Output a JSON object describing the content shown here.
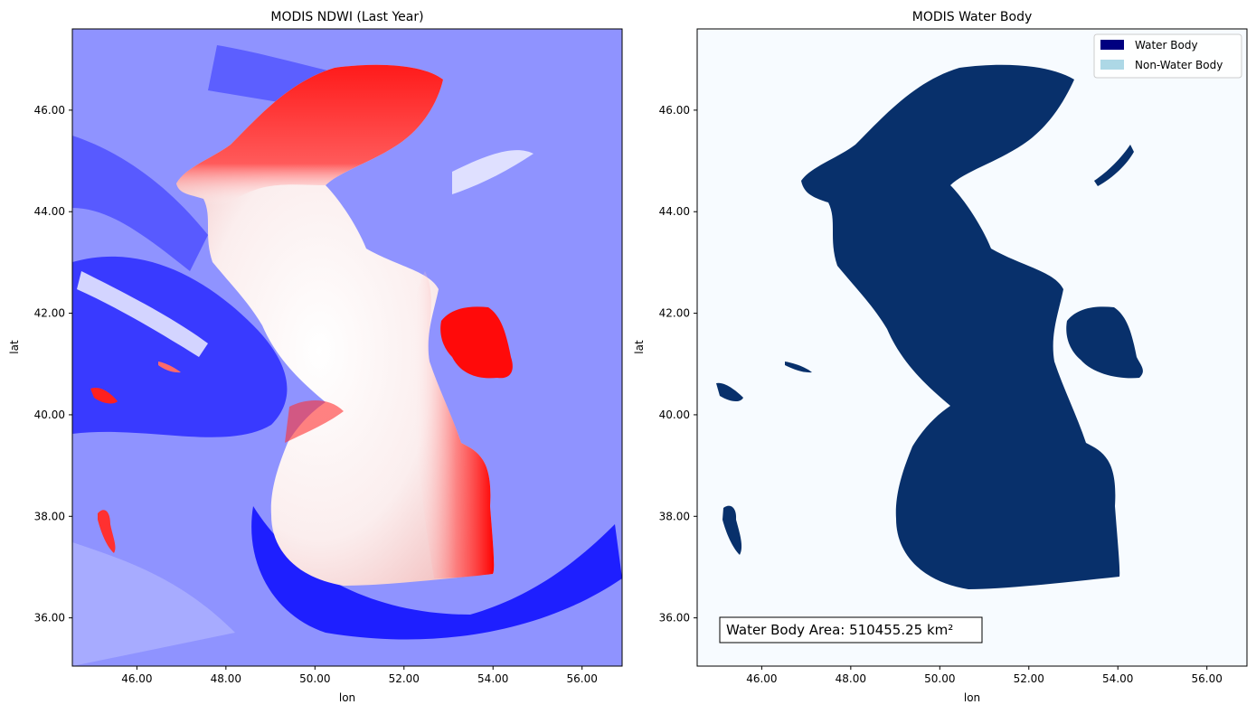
{
  "chart_data": [
    {
      "type": "heatmap",
      "title": "MODIS NDWI (Last Year)",
      "xlabel": "lon",
      "ylabel": "lat",
      "xlim": [
        44.55,
        56.9
      ],
      "ylim": [
        35.05,
        47.6
      ],
      "xticks": [
        "46.00",
        "48.00",
        "50.00",
        "52.00",
        "54.00",
        "56.00"
      ],
      "yticks": [
        "36.00",
        "38.00",
        "40.00",
        "42.00",
        "44.00",
        "46.00"
      ],
      "colormap": "bwr",
      "colors": {
        "low": "#0000ff",
        "mid": "#ffffff",
        "high": "#ff0000",
        "background": "#8f93ff"
      }
    },
    {
      "type": "heatmap",
      "title": "MODIS Water Body",
      "xlabel": "lon",
      "ylabel": "lat",
      "xlim": [
        44.55,
        56.9
      ],
      "ylim": [
        35.05,
        47.6
      ],
      "xticks": [
        "46.00",
        "48.00",
        "50.00",
        "52.00",
        "54.00",
        "56.00"
      ],
      "yticks": [
        "36.00",
        "38.00",
        "40.00",
        "42.00",
        "44.00",
        "46.00"
      ],
      "legend": {
        "position": "top-right",
        "items": [
          {
            "label": "Water Body",
            "color": "#000080"
          },
          {
            "label": "Non-Water Body",
            "color": "#add8e6"
          }
        ]
      },
      "annotation": "Water Body Area: 510455.25 km²",
      "colors": {
        "water": "#08306b",
        "land": "#f7fbff"
      }
    }
  ]
}
